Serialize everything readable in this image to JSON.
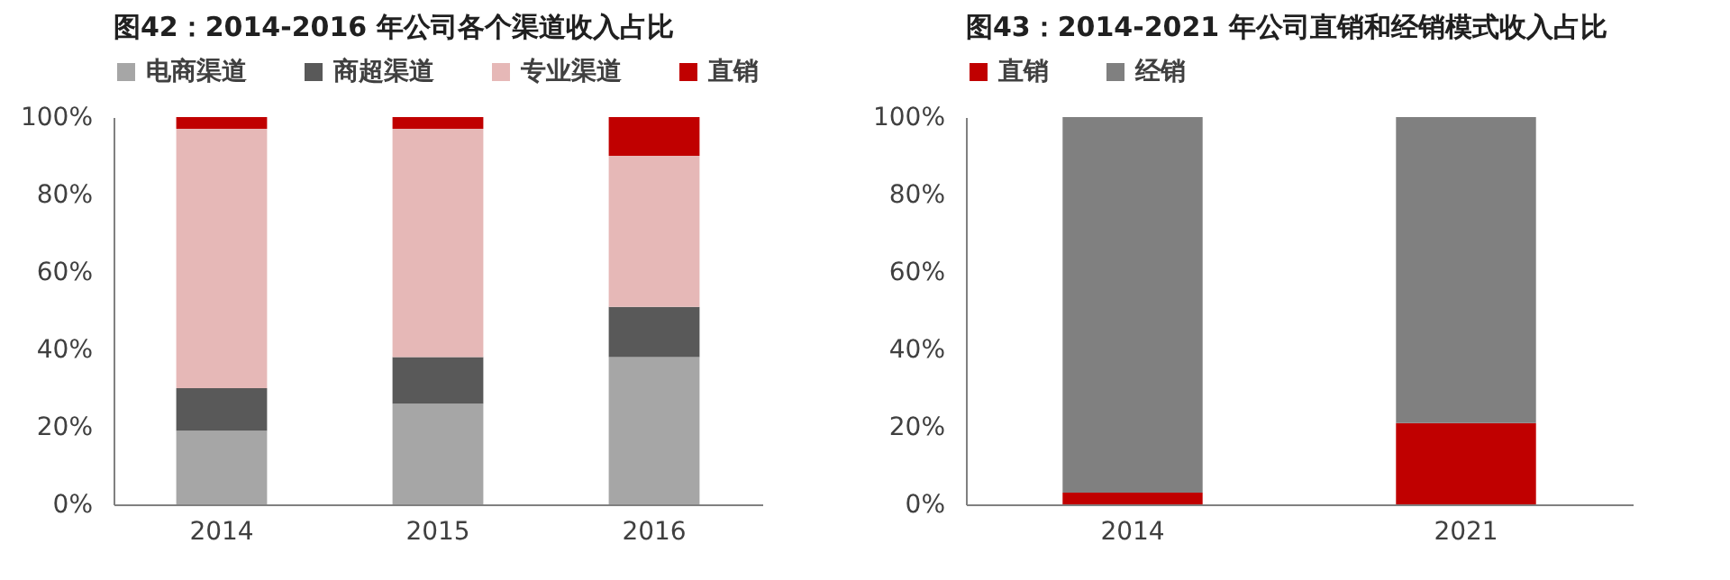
{
  "chart_data": [
    {
      "type": "bar",
      "title": "图42：2014-2016 年公司各个渠道收入占比",
      "categories": [
        "2014",
        "2015",
        "2016"
      ],
      "stacked": true,
      "legend": "top",
      "ylim": [
        0,
        100
      ],
      "yticks": [
        {
          "value": 0,
          "label": "0%"
        },
        {
          "value": 20,
          "label": "20%"
        },
        {
          "value": 40,
          "label": "40%"
        },
        {
          "value": 60,
          "label": "60%"
        },
        {
          "value": 80,
          "label": "80%"
        },
        {
          "value": 100,
          "label": "100%"
        }
      ],
      "series": [
        {
          "name": "电商渠道",
          "color": "#a6a6a6",
          "values": [
            19,
            26,
            38
          ]
        },
        {
          "name": "商超渠道",
          "color": "#595959",
          "values": [
            11,
            12,
            13
          ]
        },
        {
          "name": "专业渠道",
          "color": "#e6b8b7",
          "values": [
            67,
            59,
            39
          ]
        },
        {
          "name": "直销",
          "color": "#c00000",
          "values": [
            3,
            3,
            10
          ]
        }
      ]
    },
    {
      "type": "bar",
      "title": "图43：2014-2021 年公司直销和经销模式收入占比",
      "categories": [
        "2014",
        "2021"
      ],
      "stacked": true,
      "legend": "top",
      "ylim": [
        0,
        100
      ],
      "yticks": [
        {
          "value": 0,
          "label": "0%"
        },
        {
          "value": 20,
          "label": "20%"
        },
        {
          "value": 40,
          "label": "40%"
        },
        {
          "value": 60,
          "label": "60%"
        },
        {
          "value": 80,
          "label": "80%"
        },
        {
          "value": 100,
          "label": "100%"
        }
      ],
      "series": [
        {
          "name": "直销",
          "color": "#c00000",
          "values": [
            3,
            21
          ]
        },
        {
          "name": "经销",
          "color": "#808080",
          "values": [
            97,
            79
          ]
        }
      ]
    }
  ]
}
